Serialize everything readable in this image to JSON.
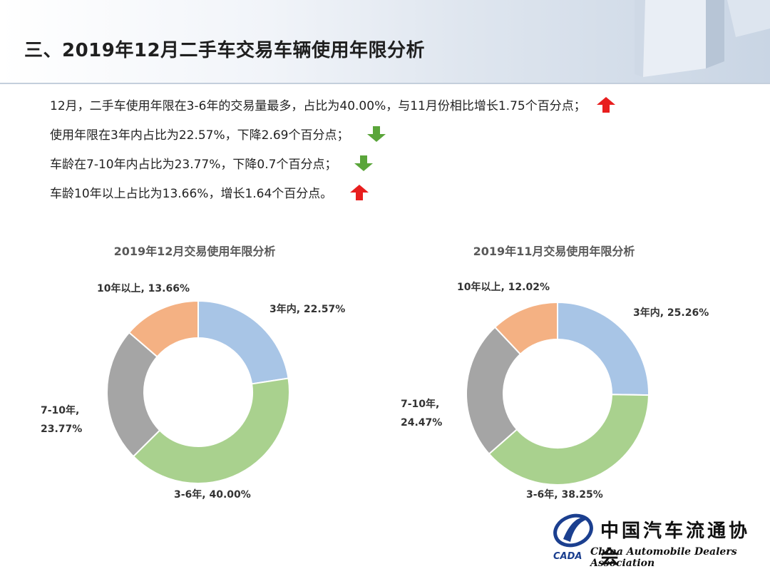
{
  "page": {
    "title": "三、2019年12月二手车交易车辆使用年限分析"
  },
  "bullets": [
    {
      "text": "12月，二手车使用年限在3-6年的交易量最多，占比为40.00%，与11月份相比增长1.75个百分点；",
      "trend": "up"
    },
    {
      "text": "使用年限在3年内占比为22.57%，下降2.69个百分点；",
      "trend": "down"
    },
    {
      "text": "车龄在7-10年内占比为23.77%，下降0.7个百分点；",
      "trend": "down"
    },
    {
      "text": "车龄10年以上占比为13.66%，增长1.64个百分点。",
      "trend": "up"
    }
  ],
  "colors": {
    "up": "#e81e1e",
    "down": "#5aa53a",
    "slice_3y": "#a8c5e6",
    "slice_3_6y": "#a9d18e",
    "slice_7_10y": "#a5a5a5",
    "slice_10y_plus": "#f4b183"
  },
  "chart_data": [
    {
      "type": "pie",
      "variant": "donut",
      "title": "2019年12月交易使用年限分析",
      "categories": [
        "3年内",
        "3-6年",
        "7-10年",
        "10年以上"
      ],
      "values": [
        22.57,
        40.0,
        23.77,
        13.66
      ],
      "labels": [
        "3年内, 22.57%",
        "3-6年, 40.00%",
        "7-10年,",
        "10年以上, 13.66%"
      ],
      "label_extra": [
        "",
        "",
        "23.77%",
        ""
      ],
      "legend": "none"
    },
    {
      "type": "pie",
      "variant": "donut",
      "title": "2019年11月交易使用年限分析",
      "categories": [
        "3年内",
        "3-6年",
        "7-10年",
        "10年以上"
      ],
      "values": [
        25.26,
        38.25,
        24.47,
        12.02
      ],
      "labels": [
        "3年内, 25.26%",
        "3-6年, 38.25%",
        "7-10年,",
        "10年以上, 12.02%"
      ],
      "label_extra": [
        "",
        "",
        "24.47%",
        ""
      ],
      "legend": "none"
    }
  ],
  "logo": {
    "abbr": "CADA",
    "name_cn": "中国汽车流通协会",
    "name_en": "China Automobile Dealers Association"
  }
}
